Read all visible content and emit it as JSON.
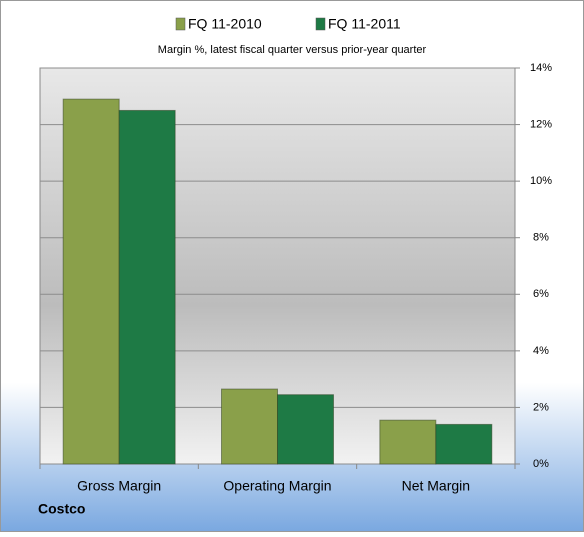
{
  "chart_data": {
    "type": "bar",
    "title": "Margin %,  latest fiscal quarter versus prior-year quarter",
    "footer": "Costco",
    "categories": [
      "Gross Margin",
      "Operating Margin",
      "Net Margin"
    ],
    "series": [
      {
        "name": "FQ 11-2010",
        "color": "#8aa04a",
        "values": [
          12.9,
          2.65,
          1.55
        ]
      },
      {
        "name": "FQ 11-2011",
        "color": "#1e7a45",
        "values": [
          12.5,
          2.45,
          1.4
        ]
      }
    ],
    "ylim": [
      0,
      14
    ],
    "yticks": [
      {
        "value": 0,
        "label": "0%"
      },
      {
        "value": 2,
        "label": "2%"
      },
      {
        "value": 4,
        "label": "4%"
      },
      {
        "value": 6,
        "label": "6%"
      },
      {
        "value": 8,
        "label": "8%"
      },
      {
        "value": 10,
        "label": "10%"
      },
      {
        "value": 12,
        "label": "12%"
      },
      {
        "value": 14,
        "label": "14%"
      }
    ],
    "grid": true
  }
}
